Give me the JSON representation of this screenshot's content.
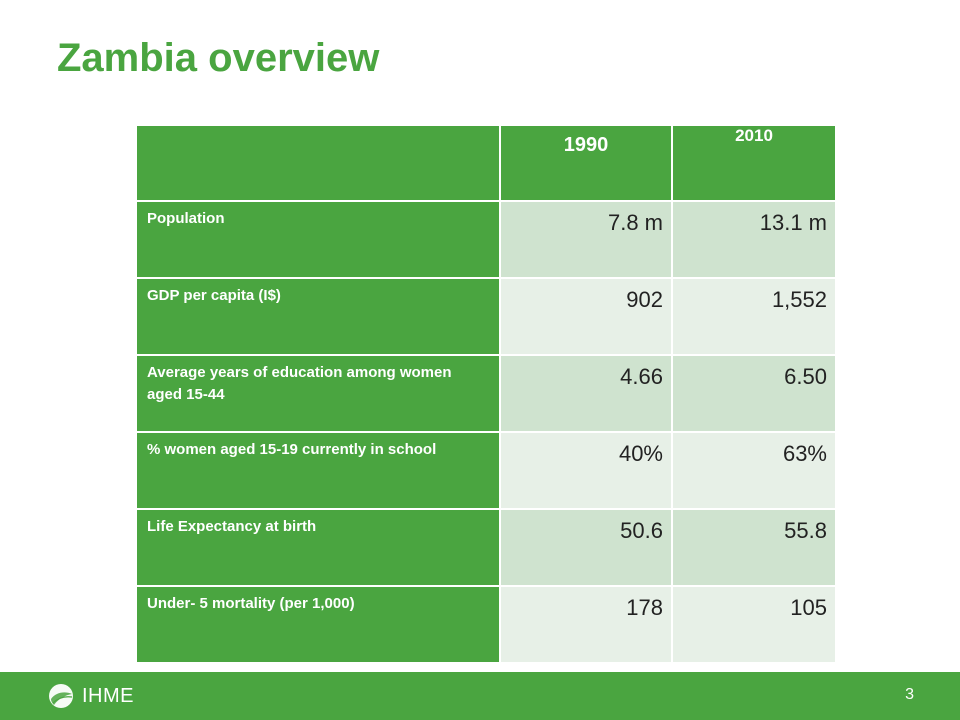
{
  "slide": {
    "title": "Zambia overview",
    "page_number": "3"
  },
  "table": {
    "headers": [
      "",
      "1990",
      "2010"
    ],
    "rows": [
      {
        "label": "Population",
        "v1990": "7.8 m",
        "v2010": "13.1 m"
      },
      {
        "label": "GDP per capita (I$)",
        "v1990": "902",
        "v2010": "1,552"
      },
      {
        "label": "Average years of education among women aged 15-44",
        "v1990": "4.66",
        "v2010": "6.50"
      },
      {
        "label": "% women aged 15-19 currently in school",
        "v1990": "40%",
        "v2010": "63%"
      },
      {
        "label": "Life Expectancy at birth",
        "v1990": "50.6",
        "v2010": "55.8"
      },
      {
        "label": "Under- 5 mortality (per 1,000)",
        "v1990": "178",
        "v2010": "105"
      }
    ]
  },
  "footer": {
    "logo_text": "IHME",
    "logo_icon": "ihme-leaf-icon"
  },
  "colors": {
    "brand_green": "#4aa540",
    "cell_dark": "#cfe3cf",
    "cell_light": "#e7f0e7"
  }
}
